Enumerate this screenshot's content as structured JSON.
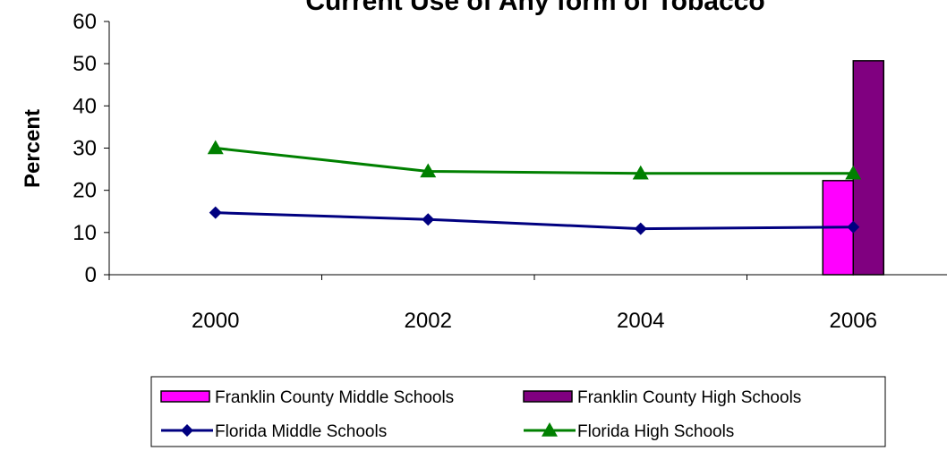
{
  "chart_data": {
    "type": "bar",
    "title": "Current Use of Any form of Tobacco",
    "xlabel": "",
    "ylabel": "Percent",
    "categories": [
      "2000",
      "2002",
      "2004",
      "2006"
    ],
    "ylim": [
      0,
      60
    ],
    "yticks": [
      0,
      10,
      20,
      30,
      40,
      50,
      60
    ],
    "grid": false,
    "legend_position": "bottom",
    "series": [
      {
        "name": "Franklin County Middle Schools",
        "kind": "bar",
        "color": "#FF00FF",
        "values": [
          null,
          null,
          null,
          22.3
        ]
      },
      {
        "name": "Franklin County High Schools",
        "kind": "bar",
        "color": "#800080",
        "values": [
          null,
          null,
          null,
          50.7
        ]
      },
      {
        "name": "Florida Middle Schools",
        "kind": "line",
        "marker": "diamond",
        "color": "#000080",
        "values": [
          14.7,
          13.1,
          10.9,
          11.3
        ]
      },
      {
        "name": "Florida High Schools",
        "kind": "line",
        "marker": "triangle",
        "color": "#008000",
        "values": [
          30.0,
          24.5,
          24.0,
          24.0
        ]
      }
    ]
  }
}
